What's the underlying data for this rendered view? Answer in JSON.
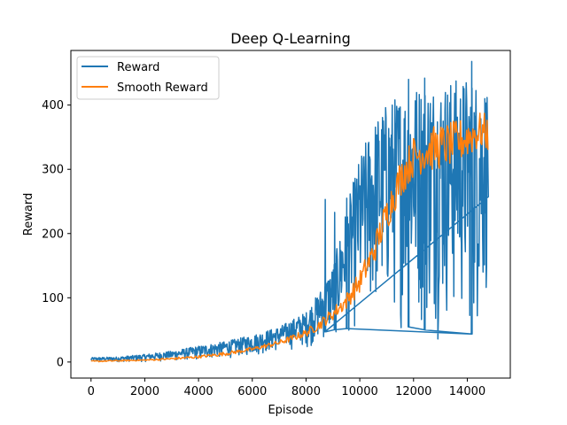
{
  "chart_data": {
    "type": "line",
    "title": "Deep Q-Learning",
    "xlabel": "Episode",
    "ylabel": "Reward",
    "xlim": [
      -750,
      15600
    ],
    "ylim": [
      -25,
      485
    ],
    "x_ticks": [
      0,
      2000,
      4000,
      6000,
      8000,
      10000,
      12000,
      14000
    ],
    "y_ticks": [
      0,
      100,
      200,
      300,
      400
    ],
    "legend_placement": "top-left",
    "grid": false,
    "episodes_max": 14800,
    "series": [
      {
        "name": "Reward",
        "color": "#1f77b4",
        "style": "noisy-envelope",
        "x": [
          0,
          1000,
          2000,
          3000,
          4000,
          5000,
          6000,
          7000,
          8000,
          8500,
          9000,
          9500,
          10000,
          10500,
          11000,
          11500,
          12000,
          12500,
          13000,
          13500,
          14000,
          14500,
          14800
        ],
        "y_high": [
          7,
          8,
          12,
          17,
          25,
          32,
          42,
          55,
          78,
          110,
          150,
          240,
          320,
          375,
          405,
          420,
          432,
          440,
          438,
          442,
          445,
          440,
          430
        ],
        "y_low": [
          0,
          0,
          0,
          1,
          2,
          5,
          8,
          14,
          20,
          25,
          30,
          32,
          35,
          40,
          45,
          42,
          30,
          30,
          28,
          25,
          25,
          20,
          110
        ],
        "spikes": [
          {
            "x": 8700,
            "y": 253
          },
          {
            "x": 9050,
            "y": 233
          },
          {
            "x": 9500,
            "y": 255
          },
          {
            "x": 14150,
            "y": 468
          },
          {
            "x": 12400,
            "y": 442
          },
          {
            "x": 11800,
            "y": 440
          }
        ]
      },
      {
        "name": "Smooth Reward",
        "color": "#ff7f0e",
        "style": "noisy-line",
        "x": [
          0,
          1000,
          2000,
          3000,
          4000,
          5000,
          6000,
          7000,
          8000,
          8500,
          9000,
          9500,
          10000,
          10500,
          11000,
          11500,
          12000,
          12500,
          13000,
          13500,
          14000,
          14500,
          14800
        ],
        "y": [
          1,
          2,
          3,
          5,
          8,
          13,
          20,
          30,
          45,
          58,
          75,
          95,
          125,
          170,
          230,
          285,
          320,
          330,
          335,
          340,
          350,
          360,
          355
        ],
        "noise": [
          1,
          1,
          1,
          2,
          2,
          3,
          3,
          4,
          6,
          8,
          10,
          13,
          18,
          22,
          28,
          30,
          32,
          35,
          35,
          35,
          33,
          30,
          30
        ]
      }
    ]
  }
}
